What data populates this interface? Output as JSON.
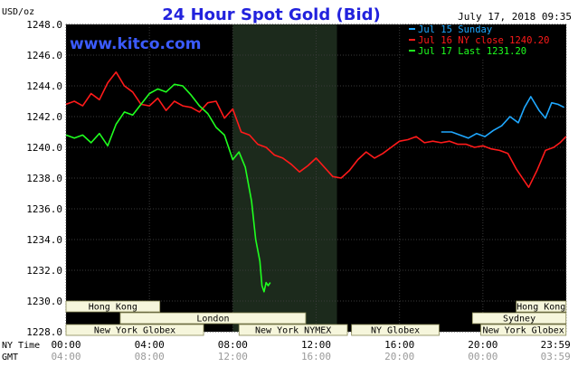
{
  "chart_data": {
    "type": "line",
    "title": "24 Hour Spot Gold (Bid)",
    "date_label": "July 17, 2018 09:35",
    "watermark": "www.kitco.com",
    "ylabel": "USD/oz",
    "ylim": [
      1228.0,
      1248.0
    ],
    "yticks": [
      "1248.0",
      "1246.0",
      "1244.0",
      "1242.0",
      "1240.0",
      "1238.0",
      "1236.0",
      "1234.0",
      "1232.0",
      "1230.0",
      "1228.0"
    ],
    "xlim": [
      0,
      24
    ],
    "time_axis": {
      "ny_label": "NY Time",
      "gmt_label": "GMT",
      "ny_ticks": [
        "00:00",
        "04:00",
        "08:00",
        "12:00",
        "16:00",
        "20:00",
        "23:59"
      ],
      "gmt_ticks": [
        "04:00",
        "08:00",
        "12:00",
        "16:00",
        "20:00",
        "00:00",
        "03:59"
      ]
    },
    "shaded_session": [
      8.0,
      13.0
    ],
    "legend": {
      "placement": "top-right",
      "entries": [
        {
          "label": "Jul 15 Sunday",
          "color": "#1fa8ff"
        },
        {
          "label": "Jul 16 NY close 1240.20",
          "color": "#ff1a1a"
        },
        {
          "label": "Jul 17 Last 1231.20",
          "color": "#1fff1f"
        }
      ]
    },
    "series": [
      {
        "name": "Jul 15 Sunday",
        "color": "#1fa8ff",
        "x": [
          18.0,
          18.5,
          18.9,
          19.3,
          19.7,
          20.1,
          20.5,
          20.9,
          21.3,
          21.7,
          22.0,
          22.3,
          22.7,
          23.0,
          23.3,
          23.6,
          23.9
        ],
        "y": [
          1241.0,
          1241.0,
          1240.8,
          1240.6,
          1240.9,
          1240.7,
          1241.1,
          1241.4,
          1242.0,
          1241.6,
          1242.6,
          1243.3,
          1242.4,
          1241.9,
          1242.9,
          1242.8,
          1242.6
        ]
      },
      {
        "name": "Jul 16 NY close 1240.20",
        "color": "#ff1a1a",
        "x": [
          0.0,
          0.4,
          0.8,
          1.2,
          1.6,
          2.0,
          2.4,
          2.8,
          3.2,
          3.6,
          4.0,
          4.4,
          4.8,
          5.2,
          5.6,
          6.0,
          6.4,
          6.8,
          7.2,
          7.6,
          8.0,
          8.4,
          8.8,
          9.2,
          9.6,
          10.0,
          10.4,
          10.8,
          11.2,
          11.6,
          12.0,
          12.4,
          12.8,
          13.2,
          13.6,
          14.0,
          14.4,
          14.8,
          15.2,
          15.6,
          16.0,
          16.4,
          16.8,
          17.2,
          17.6,
          18.0,
          18.4,
          18.8,
          19.2,
          19.6,
          20.0,
          20.4,
          20.8,
          21.2,
          21.6,
          22.0,
          22.2,
          22.6,
          23.0,
          23.4,
          23.7,
          23.99
        ],
        "y": [
          1242.8,
          1243.0,
          1242.7,
          1243.5,
          1243.1,
          1244.2,
          1244.9,
          1244.0,
          1243.6,
          1242.8,
          1242.7,
          1243.2,
          1242.4,
          1243.0,
          1242.7,
          1242.6,
          1242.3,
          1242.9,
          1243.0,
          1241.9,
          1242.5,
          1241.0,
          1240.8,
          1240.2,
          1240.0,
          1239.5,
          1239.3,
          1238.9,
          1238.4,
          1238.8,
          1239.3,
          1238.7,
          1238.1,
          1238.0,
          1238.5,
          1239.2,
          1239.7,
          1239.3,
          1239.6,
          1240.0,
          1240.4,
          1240.5,
          1240.7,
          1240.3,
          1240.4,
          1240.3,
          1240.4,
          1240.2,
          1240.2,
          1240.0,
          1240.1,
          1239.9,
          1239.8,
          1239.6,
          1238.6,
          1237.8,
          1237.4,
          1238.5,
          1239.8,
          1240.0,
          1240.3,
          1240.7
        ]
      },
      {
        "name": "Jul 17 Last 1231.20",
        "color": "#1fff1f",
        "x": [
          0.0,
          0.4,
          0.8,
          1.2,
          1.6,
          2.0,
          2.4,
          2.8,
          3.2,
          3.6,
          4.0,
          4.4,
          4.8,
          5.2,
          5.6,
          6.0,
          6.4,
          6.8,
          7.2,
          7.6,
          8.0,
          8.3,
          8.6,
          8.9,
          9.1,
          9.3,
          9.4,
          9.5,
          9.6,
          9.7,
          9.8
        ],
        "y": [
          1240.8,
          1240.6,
          1240.8,
          1240.3,
          1240.9,
          1240.1,
          1241.5,
          1242.3,
          1242.1,
          1242.8,
          1243.5,
          1243.8,
          1243.6,
          1244.1,
          1244.0,
          1243.4,
          1242.7,
          1242.2,
          1241.3,
          1240.8,
          1239.2,
          1239.7,
          1238.7,
          1236.5,
          1234.0,
          1232.6,
          1231.0,
          1230.6,
          1231.2,
          1231.0,
          1231.2
        ]
      }
    ],
    "market_sessions": [
      {
        "label": "Hong Kong",
        "start": 0.0,
        "end": 4.5,
        "row": 0
      },
      {
        "label": "Hong Kong",
        "start": 21.6,
        "end": 23.99,
        "row": 0
      },
      {
        "label": "London",
        "start": 2.6,
        "end": 11.5,
        "row": 1
      },
      {
        "label": "New York Globex",
        "start": 0.0,
        "end": 6.6,
        "row": 2
      },
      {
        "label": "New York NYMEX",
        "start": 8.3,
        "end": 13.5,
        "row": 2
      },
      {
        "label": "NY Globex",
        "start": 13.7,
        "end": 17.9,
        "row": 2
      },
      {
        "label": "New York Globex",
        "start": 19.9,
        "end": 23.99,
        "row": 2
      },
      {
        "label": "Sydney",
        "start": 19.5,
        "end": 23.99,
        "row": 1
      }
    ]
  }
}
